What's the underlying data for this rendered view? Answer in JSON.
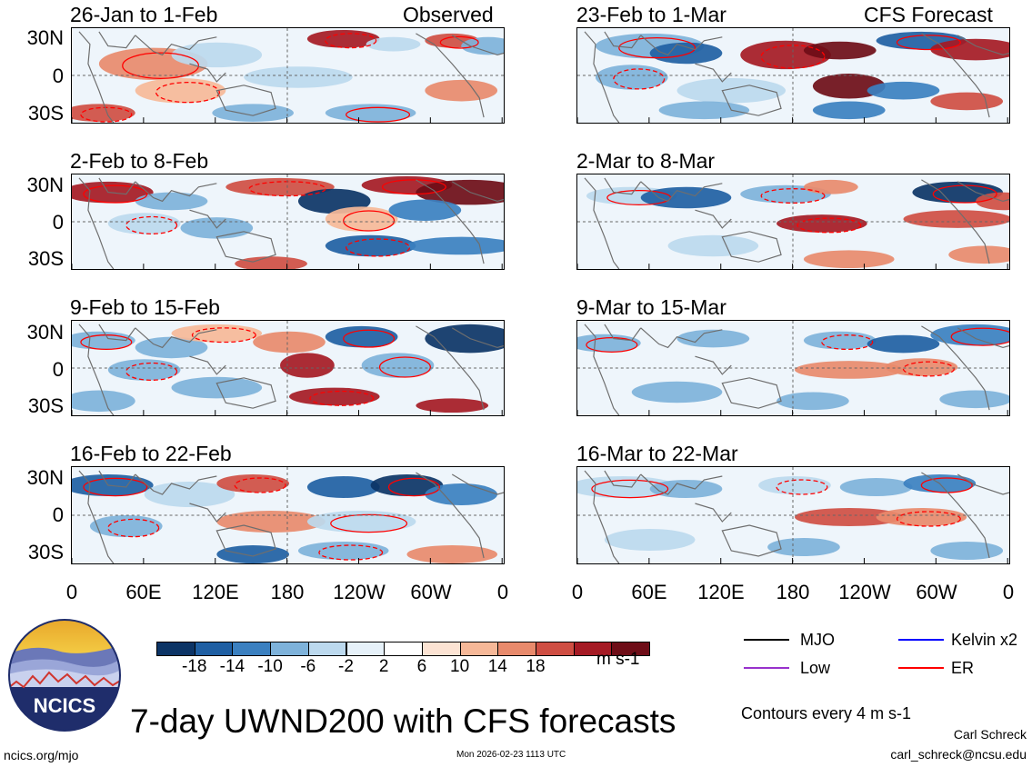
{
  "panels": [
    {
      "id": "p1",
      "title_left": "26-Jan to 1-Feb",
      "title_right": "Observed"
    },
    {
      "id": "p2",
      "title_left": "23-Feb to 1-Mar",
      "title_right": "CFS Forecast"
    },
    {
      "id": "p3",
      "title_left": "2-Feb to 8-Feb",
      "title_right": ""
    },
    {
      "id": "p4",
      "title_left": "2-Mar to 8-Mar",
      "title_right": ""
    },
    {
      "id": "p5",
      "title_left": "9-Feb to 15-Feb",
      "title_right": ""
    },
    {
      "id": "p6",
      "title_left": "9-Mar to 15-Mar",
      "title_right": ""
    },
    {
      "id": "p7",
      "title_left": "16-Feb to 22-Feb",
      "title_right": ""
    },
    {
      "id": "p8",
      "title_left": "16-Mar to 22-Mar",
      "title_right": ""
    }
  ],
  "lat_labels": [
    "30N",
    "0",
    "30S"
  ],
  "lon_labels": [
    "0",
    "60E",
    "120E",
    "180",
    "120W",
    "60W",
    "0"
  ],
  "colorbar": {
    "colors": [
      "#0c3466",
      "#1f5fa3",
      "#3b80c0",
      "#7eb2da",
      "#bcd9ee",
      "#e6f1f9",
      "#ffffff",
      "#fce3d3",
      "#f6b898",
      "#e88a6c",
      "#cf4e43",
      "#a51a24",
      "#6e0d17"
    ],
    "labels": [
      "-18",
      "-14",
      "-10",
      "-6",
      "-2",
      "2",
      "6",
      "10",
      "14",
      "18"
    ],
    "unit": "m s-1"
  },
  "legend": [
    {
      "label": "MJO",
      "color": "#000000"
    },
    {
      "label": "Kelvin x2",
      "color": "#0000ff"
    },
    {
      "label": "Low",
      "color": "#9932cc"
    },
    {
      "label": "ER",
      "color": "#ff0000"
    }
  ],
  "contour_note": "Contours every 4 m s-1",
  "main_title": "7-day UWND200 with CFS forecasts",
  "logo_text": "NCICS",
  "url": "ncics.org/mjo",
  "timestamp": "Mon 2026-02-23 1113 UTC",
  "author": "Carl Schreck",
  "email": "carl_schreck@ncsu.edu"
}
